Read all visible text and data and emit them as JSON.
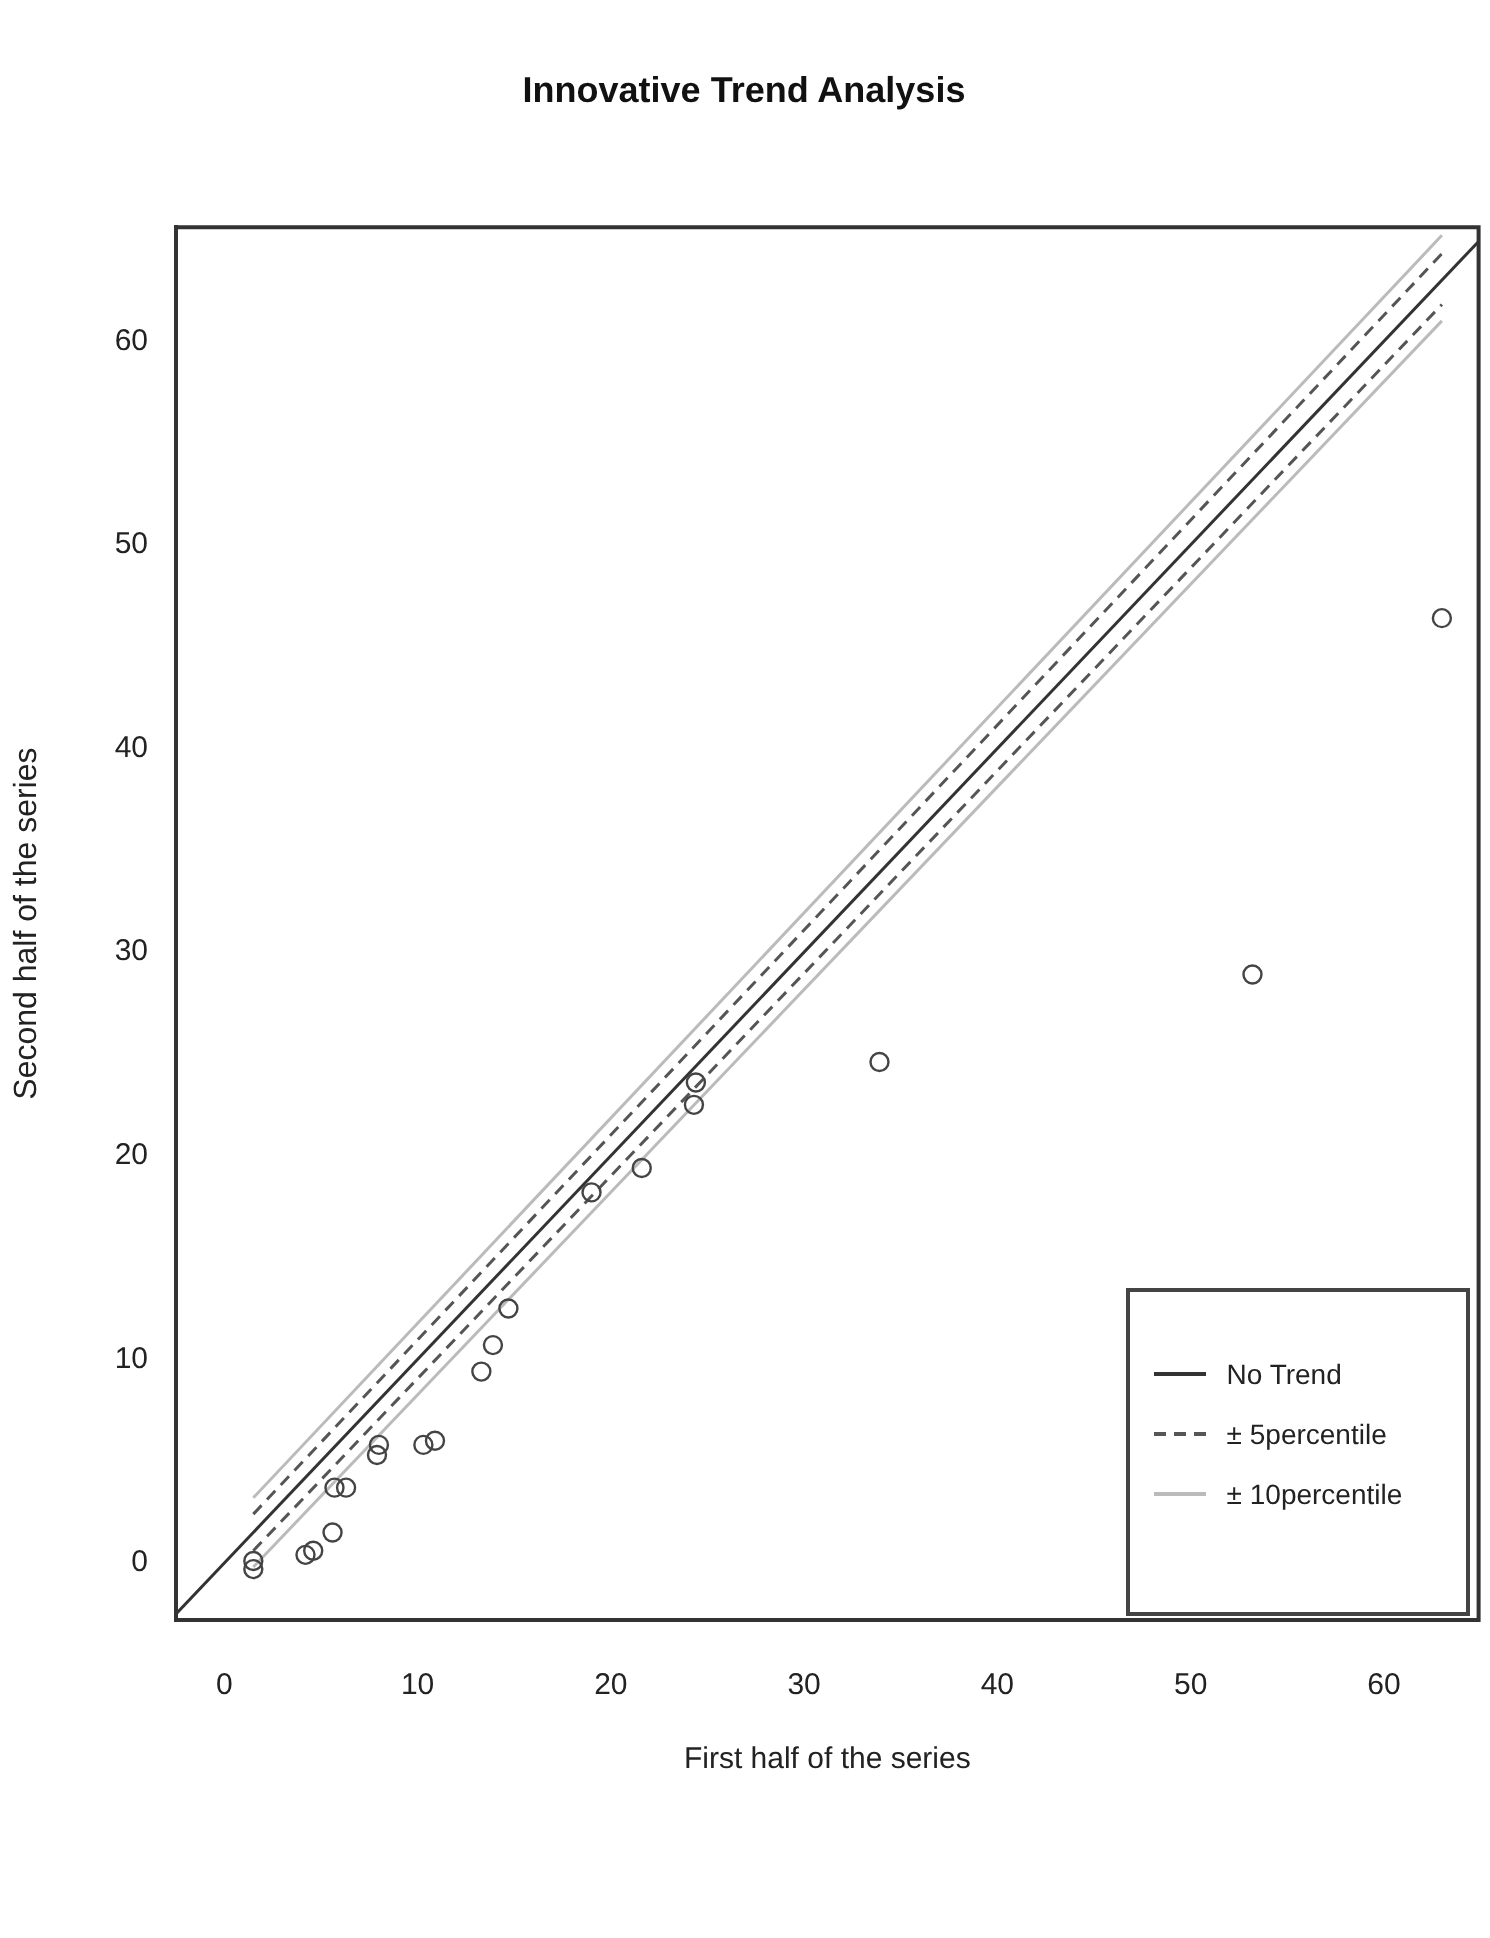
{
  "chart_data": {
    "type": "scatter",
    "title": "Innovative Trend Analysis",
    "xlabel": "First half of the series",
    "ylabel": "Second half of the series",
    "xlim": [
      -2.5,
      64.9
    ],
    "ylim": [
      -2.8,
      65.6
    ],
    "xticks": [
      0,
      10,
      20,
      30,
      40,
      50,
      60
    ],
    "yticks": [
      0,
      10,
      20,
      30,
      40,
      50,
      60
    ],
    "grid": false,
    "legend": "bottom right",
    "series": [
      {
        "marker": "circle",
        "color": "#444444",
        "x": [
          1.5,
          1.5,
          4.2,
          4.6,
          5.6,
          5.7,
          6.3,
          7.9,
          8.0,
          10.3,
          10.9,
          13.3,
          13.9,
          14.7,
          19.0,
          21.6,
          24.3,
          24.4,
          33.9,
          53.2,
          63.0
        ],
        "values": [
          -0.3,
          0.1,
          0.4,
          0.6,
          1.5,
          3.7,
          3.7,
          5.3,
          5.8,
          5.8,
          6.0,
          9.4,
          10.7,
          12.5,
          18.2,
          19.4,
          22.5,
          23.6,
          24.6,
          28.9,
          46.4
        ]
      },
      {
        "type": "line",
        "name": "No Trend",
        "color": "#333333",
        "line_style": "solid",
        "x": [
          -2.5,
          64.9
        ],
        "values": [
          -2.5,
          64.9
        ]
      },
      {
        "type": "line",
        "name": "± 5percentile",
        "color": "#555555",
        "line_style": "dashed",
        "x": [
          1.5,
          63
        ],
        "values": [
          2.4,
          64.3
        ]
      },
      {
        "type": "line",
        "color": "#555555",
        "line_style": "dashed",
        "x": [
          1.5,
          63
        ],
        "values": [
          0.6,
          61.8
        ]
      },
      {
        "type": "line",
        "name": "± 10percentile",
        "color": "#bbbbbb",
        "line_style": "solid",
        "x": [
          1.5,
          63
        ],
        "values": [
          3.2,
          65.2
        ]
      },
      {
        "type": "line",
        "color": "#bbbbbb",
        "line_style": "solid",
        "x": [
          1.5,
          63
        ],
        "values": [
          -0.2,
          61.0
        ]
      }
    ]
  }
}
